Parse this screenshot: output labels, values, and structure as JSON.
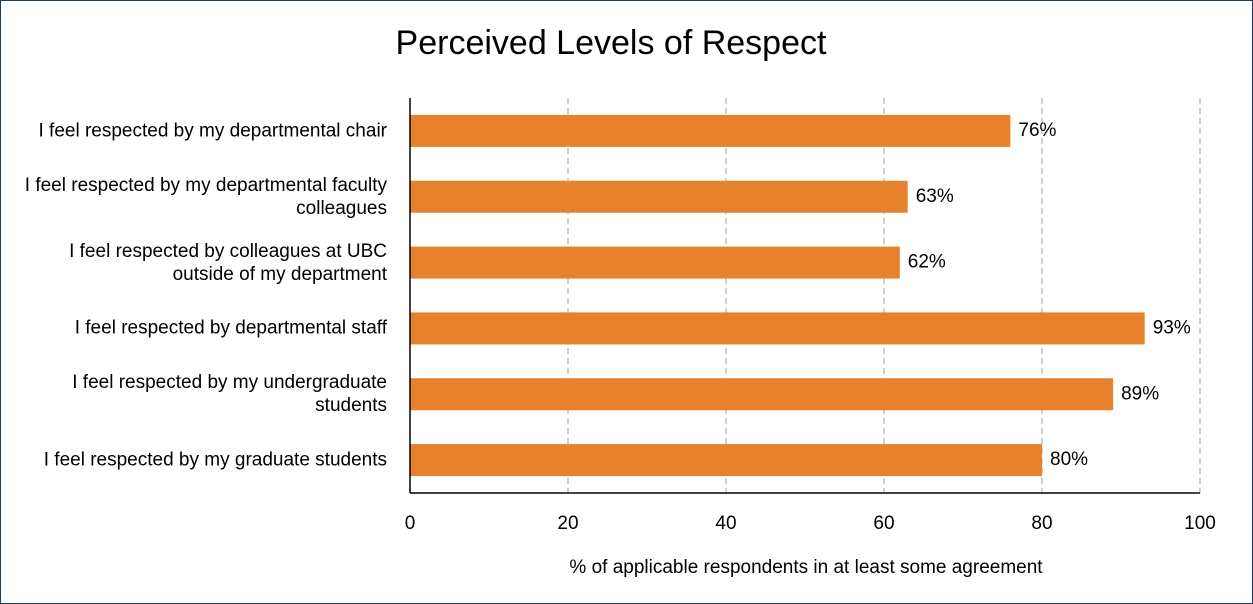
{
  "chart_data": {
    "type": "bar",
    "orientation": "horizontal",
    "title": "Perceived Levels of Respect",
    "categories": [
      "I feel respected by my departmental chair",
      "I feel respected by my departmental faculty colleagues",
      "I feel respected by colleagues at UBC outside of my department",
      "I feel respected by departmental staff",
      "I feel respected by my undergraduate students",
      "I feel respected by my graduate students"
    ],
    "values": [
      76,
      63,
      62,
      93,
      89,
      80
    ],
    "value_labels": [
      "76%",
      "63%",
      "62%",
      "93%",
      "89%",
      "80%"
    ],
    "color": "#e8812b",
    "xlabel": "% of applicable respondents in at least some agreement",
    "xlim": [
      0,
      100
    ],
    "xticks": [
      0,
      20,
      40,
      60,
      80,
      100
    ],
    "grid": true
  }
}
